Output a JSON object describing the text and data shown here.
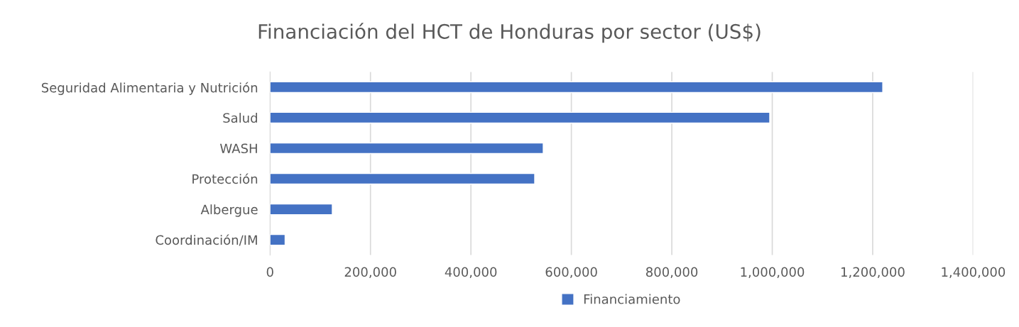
{
  "chart_data": {
    "type": "bar",
    "orientation": "horizontal",
    "title": "Financiación del HCT de Honduras por sector (US$)",
    "categories": [
      "Seguridad Alimentaria y Nutrición",
      "Salud",
      "WASH",
      "Protección",
      "Albergue",
      "Coordinación/IM"
    ],
    "series": [
      {
        "name": "Financiamiento",
        "color": "#4472c4",
        "values": [
          1220000,
          995000,
          544000,
          527000,
          124000,
          30000
        ]
      }
    ],
    "xlim": [
      0,
      1400000
    ],
    "xticks": [
      {
        "value": 0,
        "label": "0"
      },
      {
        "value": 200000,
        "label": "200,000"
      },
      {
        "value": 400000,
        "label": "400,000"
      },
      {
        "value": 600000,
        "label": "600,000"
      },
      {
        "value": 800000,
        "label": "800,000"
      },
      {
        "value": 1000000,
        "label": "1,000,000"
      },
      {
        "value": 1200000,
        "label": "1,200,000"
      },
      {
        "value": 1400000,
        "label": "1,400,000"
      }
    ],
    "grid": "x",
    "legend": "bottom"
  }
}
